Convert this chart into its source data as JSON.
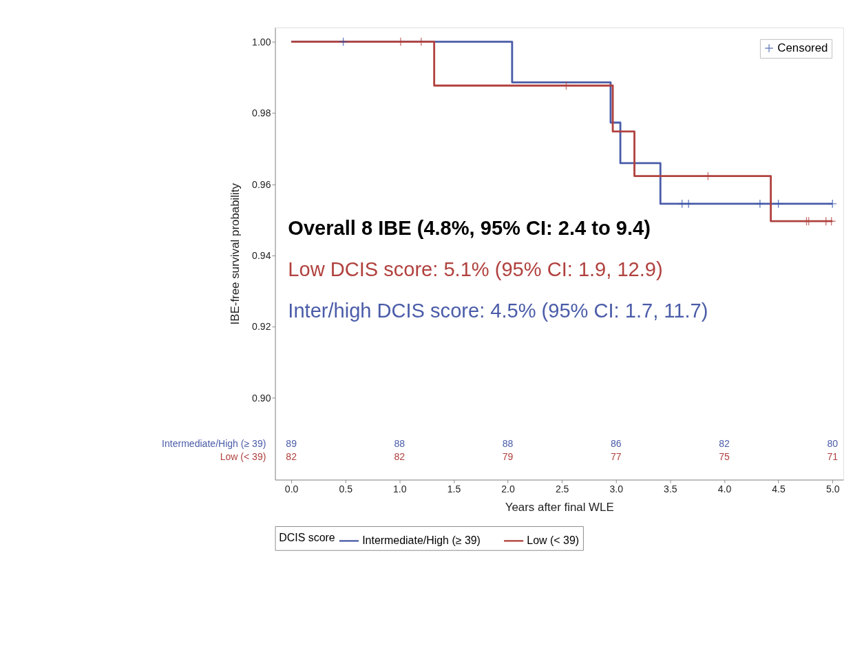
{
  "chart_data": {
    "type": "step",
    "xlabel": "Years after final WLE",
    "ylabel": "IBE-free survival probability",
    "legend_title": "DCIS score",
    "legend": "bottom",
    "grid": false,
    "line_style": "solid",
    "xlim": [
      -0.15,
      5.1
    ],
    "ylim": [
      0.877,
      1.004
    ],
    "xticks": [
      {
        "value": 0,
        "label": "0.0"
      },
      0.5,
      {
        "value": 1,
        "label": "1.0"
      },
      1.5,
      {
        "value": 2,
        "label": "2.0"
      },
      2.5,
      {
        "value": 3,
        "label": "3.0"
      },
      3.5,
      {
        "value": 4,
        "label": "4.0"
      },
      4.5,
      {
        "value": 5,
        "label": "5.0"
      }
    ],
    "yticks": [
      {
        "value": 0.9,
        "label": "0.90"
      },
      {
        "value": 0.92,
        "label": "0.92"
      },
      {
        "value": 0.94,
        "label": "0.94"
      },
      {
        "value": 0.96,
        "label": "0.96"
      },
      {
        "value": 0.98,
        "label": "0.98"
      },
      {
        "value": 1.0,
        "label": "1.00"
      }
    ],
    "series": [
      {
        "name": "Intermediate/High (≥ 39)",
        "color": "#4a5ca8",
        "x": [
          0,
          2.04,
          2.95,
          3.04,
          3.41,
          5.0
        ],
        "values": [
          1.0,
          0.9886,
          0.9773,
          0.9659,
          0.9545,
          0.9545
        ]
      },
      {
        "name": "Low (< 39)",
        "color": "#b0413e",
        "x": [
          0,
          1.32,
          2.97,
          3.17,
          4.43,
          5.0
        ],
        "values": [
          1.0,
          0.9877,
          0.9748,
          0.9623,
          0.9496,
          0.9496
        ]
      },
      {
        "name": "Censored",
        "color": "#2f4fa8",
        "type": "scatter",
        "marker": "cross",
        "x": [
          0.48,
          3.61,
          3.67,
          4.33,
          4.5,
          5.0
        ],
        "values": [
          1.0,
          0.9545,
          0.9545,
          0.9545,
          0.9545,
          0.9545
        ]
      },
      {
        "color": "#b0413e",
        "type": "scatter",
        "marker": "cross",
        "x": [
          1.01,
          1.2,
          2.54,
          3.85,
          4.76,
          4.78,
          4.94,
          4.99
        ],
        "values": [
          1.0,
          1.0,
          0.9877,
          0.9623,
          0.9496,
          0.9496,
          0.9496,
          0.9496
        ]
      }
    ],
    "annotations": [
      "Overall 8 IBE (4.8%, 95% CI: 2.4 to 9.4)",
      "Low DCIS score: 5.1% (95% CI: 1.9, 12.9)",
      "Inter/high DCIS score: 4.5% (95% CI: 1.7, 11.7)",
      "89",
      "88",
      "88",
      "86",
      "82",
      "80",
      "82",
      "82",
      "79",
      "77",
      "75",
      "71"
    ]
  }
}
